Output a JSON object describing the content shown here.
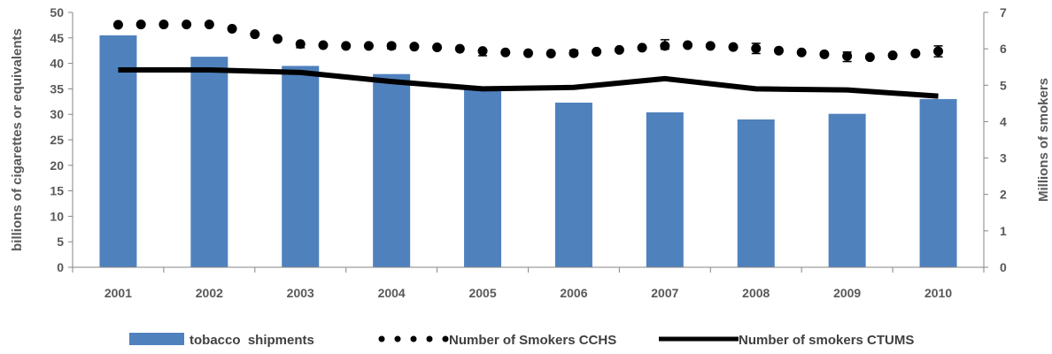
{
  "chart_data": {
    "type": "bar",
    "categories": [
      "2001",
      "2002",
      "2003",
      "2004",
      "2005",
      "2006",
      "2007",
      "2008",
      "2009",
      "2010"
    ],
    "left_axis": {
      "label": "billions of cigarettes or equivalents",
      "range": [
        0,
        50
      ],
      "ticks": [
        "0",
        "5",
        "10",
        "15",
        "20",
        "25",
        "30",
        "35",
        "40",
        "45",
        "50"
      ]
    },
    "right_axis": {
      "label": "Millions of smokers",
      "range": [
        0,
        7
      ],
      "ticks": [
        "0",
        "1",
        "2",
        "3",
        "4",
        "5",
        "6",
        "7"
      ]
    },
    "series": [
      {
        "name": "tobacco  shipments",
        "kind": "bar",
        "axis": "left",
        "color": "#4f81bd",
        "values": [
          45.5,
          41.3,
          39.5,
          37.9,
          35.5,
          32.3,
          30.4,
          29.0,
          30.1,
          33.0
        ]
      },
      {
        "name": "Number of Smokers CCHS",
        "kind": "dotted-line",
        "axis": "right",
        "color": "#000000",
        "x": [
          0,
          0.25,
          0.5,
          0.75,
          1,
          1.25,
          1.5,
          1.75,
          2,
          2.25,
          2.5,
          2.75,
          3,
          3.25,
          3.5,
          3.75,
          4,
          4.25,
          4.5,
          4.75,
          5,
          5.25,
          5.5,
          5.75,
          6,
          6.25,
          6.5,
          6.75,
          7,
          7.25,
          7.5,
          7.75,
          8,
          8.25,
          8.5,
          8.75,
          9
        ],
        "values": [
          6.66,
          6.67,
          6.67,
          6.67,
          6.67,
          6.55,
          6.4,
          6.27,
          6.13,
          6.1,
          6.08,
          6.08,
          6.08,
          6.06,
          6.04,
          6.0,
          5.94,
          5.9,
          5.88,
          5.87,
          5.88,
          5.92,
          5.97,
          6.03,
          6.08,
          6.1,
          6.08,
          6.05,
          6.01,
          5.95,
          5.9,
          5.85,
          5.8,
          5.77,
          5.82,
          5.87,
          5.93
        ],
        "error_bars": [
          {
            "x": 2,
            "y": 6.1,
            "err": 0.07
          },
          {
            "x": 3,
            "y": 6.07,
            "err": 0.07
          },
          {
            "x": 4,
            "y": 5.88,
            "err": 0.07
          },
          {
            "x": 5,
            "y": 5.89,
            "err": 0.07
          },
          {
            "x": 6,
            "y": 6.12,
            "err": 0.13
          },
          {
            "x": 7,
            "y": 6.01,
            "err": 0.14
          },
          {
            "x": 8,
            "y": 5.78,
            "err": 0.13
          },
          {
            "x": 9,
            "y": 5.93,
            "err": 0.15
          }
        ]
      },
      {
        "name": "Number of smokers CTUMS",
        "kind": "line",
        "axis": "right",
        "color": "#000000",
        "values": [
          5.42,
          5.42,
          5.35,
          5.1,
          4.9,
          4.94,
          5.18,
          4.9,
          4.87,
          4.7
        ]
      }
    ],
    "grid": false,
    "legend_position": "bottom"
  }
}
